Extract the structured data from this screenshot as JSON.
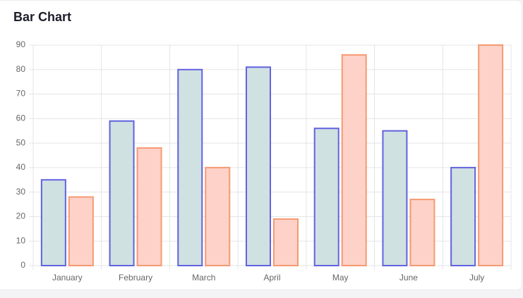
{
  "chart_data": {
    "type": "bar",
    "title": "Bar Chart",
    "categories": [
      "January",
      "February",
      "March",
      "April",
      "May",
      "June",
      "July"
    ],
    "series": [
      {
        "color": "#6262e0",
        "fill": "#cfe1e1",
        "values": [
          35,
          59,
          80,
          81,
          56,
          55,
          40
        ]
      },
      {
        "color": "#f59a72",
        "fill": "#fed2c8",
        "values": [
          28,
          48,
          40,
          19,
          86,
          27,
          90
        ]
      }
    ],
    "ylim": [
      0,
      90
    ],
    "yticks": [
      0,
      10,
      20,
      30,
      40,
      50,
      60,
      70,
      80,
      90
    ],
    "grid": true
  }
}
